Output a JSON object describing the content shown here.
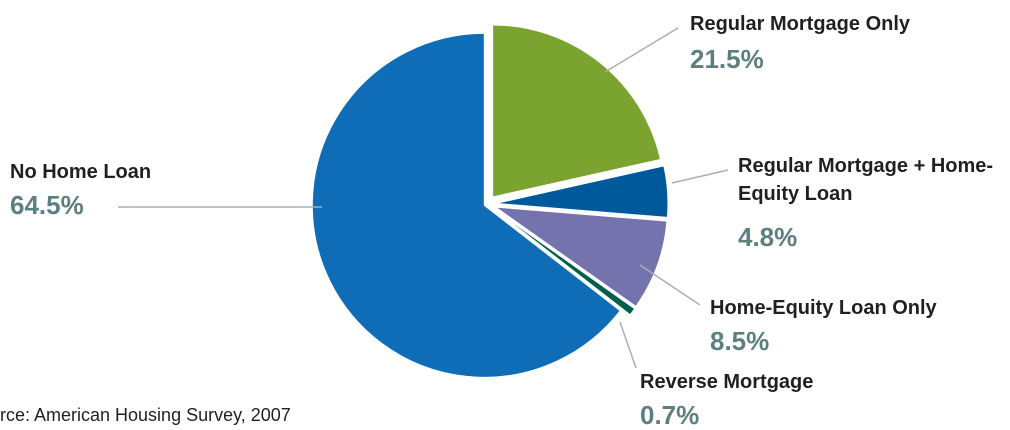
{
  "chart_data": {
    "type": "pie",
    "categories": [
      "Regular Mortgage Only",
      "Regular Mortgage + Home-Equity Loan",
      "Home-Equity Loan Only",
      "Reverse Mortgage",
      "No Home Loan"
    ],
    "values": [
      21.5,
      4.8,
      8.5,
      0.7,
      64.5
    ],
    "value_labels": [
      "21.5%",
      "4.8%",
      "8.5%",
      "0.7%",
      "64.5%"
    ],
    "colors": [
      "#7ba32f",
      "#00599b",
      "#7473ad",
      "#005e4a",
      "#0f6cb7"
    ],
    "source": "rce: American Housing Survey, 2007"
  }
}
